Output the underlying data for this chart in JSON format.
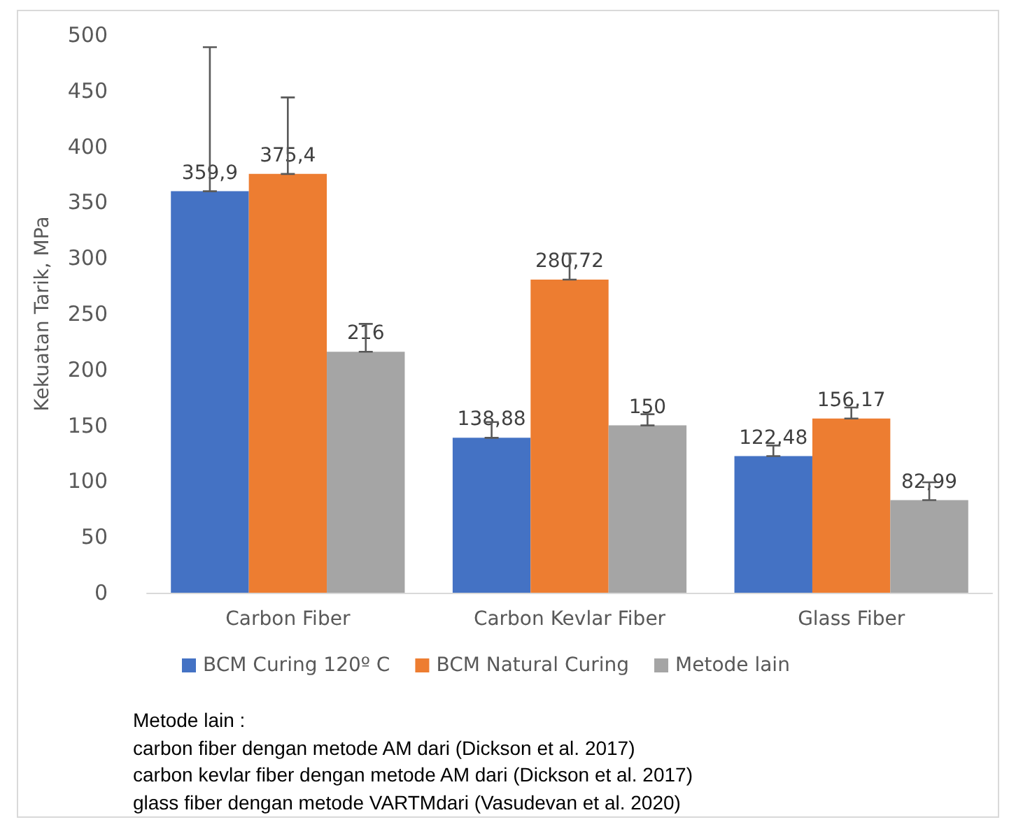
{
  "chart_data": {
    "type": "bar",
    "ylabel": "Kekuatan Tarik, MPa",
    "categories": [
      "Carbon Fiber",
      "Carbon Kevlar Fiber",
      "Glass Fiber"
    ],
    "series": [
      {
        "name": "BCM Curing 120º C",
        "color": "#4472c4",
        "values": [
          359.9,
          138.88,
          122.48
        ],
        "value_labels": [
          "359,9",
          "138,88",
          "122,48"
        ],
        "errors": [
          [
            359.9,
            489
          ],
          [
            138.88,
            153
          ],
          [
            122.48,
            132
          ]
        ]
      },
      {
        "name": "BCM Natural Curing",
        "color": "#ed7d31",
        "values": [
          375.4,
          280.72,
          156.17
        ],
        "value_labels": [
          "375,4",
          "280,72",
          "156,17"
        ],
        "errors": [
          [
            375.4,
            444
          ],
          [
            280.72,
            304
          ],
          [
            156.17,
            166
          ]
        ]
      },
      {
        "name": "Metode lain",
        "color": "#a5a5a5",
        "values": [
          216,
          150,
          82.99
        ],
        "value_labels": [
          "216",
          "150",
          "82,99"
        ],
        "errors": [
          [
            216,
            241
          ],
          [
            150,
            160
          ],
          [
            82.99,
            99
          ]
        ]
      }
    ],
    "ylim": [
      0,
      500
    ],
    "yticks": [
      0,
      50,
      100,
      150,
      200,
      250,
      300,
      350,
      400,
      450,
      500
    ],
    "grid": false,
    "legend": "bottom",
    "annotations": [
      "Metode lain :",
      "carbon fiber dengan metode AM dari (Dickson et al. 2017)",
      "carbon kevlar fiber dengan metode AM dari (Dickson et al. 2017)",
      "glass fiber dengan metode VARTMdari (Vasudevan et al. 2020)"
    ]
  }
}
